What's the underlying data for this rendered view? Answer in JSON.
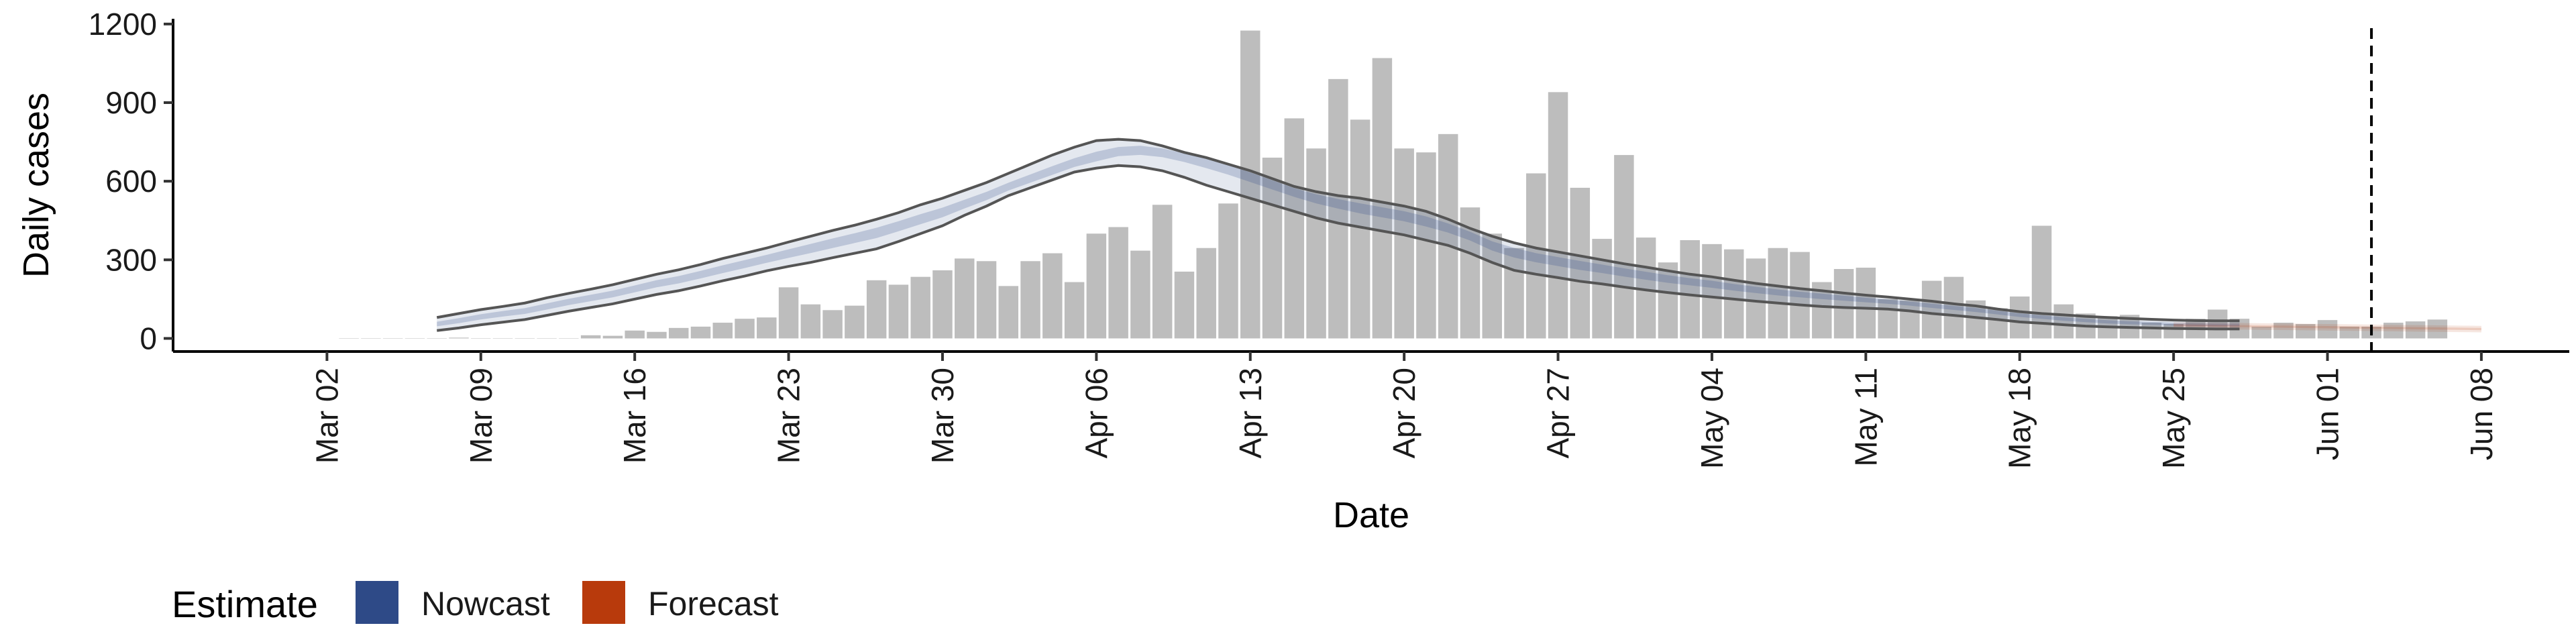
{
  "chart_data": {
    "type": "bar",
    "xlabel": "Date",
    "ylabel": "Daily cases",
    "ylim": [
      -50,
      1220
    ],
    "xlim": [
      "2020-02-24",
      "2020-06-12"
    ],
    "y_ticks": [
      0,
      300,
      600,
      900,
      1200
    ],
    "y_tick_labels": [
      "0",
      "300",
      "600",
      "900",
      "1200"
    ],
    "x_ticks": [
      "2020-03-02",
      "2020-03-09",
      "2020-03-16",
      "2020-03-23",
      "2020-03-30",
      "2020-04-06",
      "2020-04-13",
      "2020-04-20",
      "2020-04-27",
      "2020-05-04",
      "2020-05-11",
      "2020-05-18",
      "2020-05-25",
      "2020-06-01",
      "2020-06-08"
    ],
    "x_tick_labels": [
      "Mar 02",
      "Mar 09",
      "Mar 16",
      "Mar 23",
      "Mar 30",
      "Apr 06",
      "Apr 13",
      "Apr 20",
      "Apr 27",
      "May 04",
      "May 11",
      "May 18",
      "May 25",
      "Jun 01",
      "Jun 08"
    ],
    "grid": false,
    "vline_date": "2020-06-03",
    "legend": {
      "title": "Estimate",
      "position": "bottom-left",
      "items": [
        {
          "label": "Nowcast",
          "color": "#2e4a87"
        },
        {
          "label": "Forecast",
          "color": "#b83a0c"
        }
      ]
    },
    "bars": {
      "start_date": "2020-03-03",
      "color": "#bdbdbd",
      "values": [
        0,
        0,
        0,
        0,
        0,
        3,
        0,
        0,
        0,
        1,
        0,
        12,
        10,
        30,
        25,
        40,
        45,
        60,
        75,
        80,
        195,
        130,
        108,
        125,
        222,
        205,
        235,
        260,
        305,
        295,
        200,
        295,
        325,
        215,
        400,
        425,
        335,
        510,
        255,
        345,
        515,
        1175,
        690,
        840,
        725,
        990,
        835,
        1070,
        725,
        710,
        780,
        500,
        400,
        345,
        630,
        940,
        575,
        380,
        700,
        385,
        290,
        375,
        360,
        340,
        305,
        345,
        330,
        215,
        265,
        270,
        150,
        145,
        220,
        235,
        145,
        115,
        160,
        430,
        130,
        95,
        85,
        90,
        60,
        55,
        75,
        110,
        75,
        45,
        60,
        55,
        70,
        45,
        45,
        60,
        65,
        72
      ]
    },
    "nowcast": {
      "start_date": "2020-03-07",
      "color": "#2e4a87",
      "median": [
        55,
        68,
        83,
        95,
        105,
        122,
        140,
        155,
        170,
        190,
        210,
        225,
        245,
        265,
        285,
        305,
        325,
        345,
        365,
        385,
        405,
        430,
        455,
        480,
        510,
        540,
        575,
        605,
        635,
        665,
        690,
        715,
        725,
        720,
        705,
        685,
        660,
        630,
        600,
        570,
        545,
        525,
        505,
        490,
        475,
        455,
        430,
        400,
        360,
        335,
        315,
        300,
        285,
        272,
        258,
        245,
        232,
        222,
        212,
        200,
        190,
        180,
        172,
        165,
        158,
        150,
        143,
        136,
        128,
        120,
        112,
        102,
        92,
        84,
        76,
        70,
        64,
        60,
        58,
        55,
        53,
        52,
        52
      ],
      "lower": [
        30,
        40,
        52,
        62,
        72,
        88,
        104,
        118,
        132,
        150,
        168,
        182,
        200,
        220,
        238,
        258,
        275,
        290,
        308,
        325,
        342,
        370,
        400,
        430,
        470,
        505,
        545,
        575,
        605,
        635,
        650,
        660,
        655,
        640,
        615,
        585,
        560,
        535,
        510,
        485,
        460,
        440,
        425,
        410,
        395,
        375,
        355,
        325,
        290,
        260,
        245,
        232,
        218,
        208,
        196,
        185,
        175,
        166,
        158,
        150,
        142,
        135,
        128,
        122,
        118,
        115,
        112,
        105,
        95,
        88,
        80,
        72,
        63,
        58,
        52,
        47,
        44,
        42,
        40,
        38,
        37,
        36,
        36
      ],
      "upper": [
        80,
        95,
        110,
        122,
        135,
        155,
        172,
        188,
        205,
        225,
        245,
        262,
        282,
        305,
        325,
        345,
        368,
        390,
        412,
        432,
        455,
        480,
        510,
        535,
        565,
        595,
        630,
        665,
        700,
        730,
        755,
        760,
        755,
        735,
        710,
        690,
        665,
        640,
        610,
        580,
        560,
        545,
        535,
        520,
        505,
        485,
        455,
        420,
        390,
        365,
        345,
        330,
        315,
        300,
        285,
        272,
        258,
        245,
        235,
        222,
        210,
        200,
        190,
        182,
        173,
        165,
        158,
        150,
        142,
        132,
        124,
        112,
        102,
        95,
        90,
        84,
        80,
        76,
        73,
        70,
        68,
        67,
        67
      ]
    },
    "forecast": {
      "start_date": "2020-05-25",
      "color": "#b83a0c",
      "median": [
        50,
        49,
        48,
        47,
        46,
        45,
        44,
        43,
        42,
        41,
        40,
        39,
        38,
        37,
        36
      ],
      "lower": [
        38,
        37,
        35,
        34,
        33,
        32,
        31,
        30,
        29,
        28,
        27,
        26,
        25,
        24,
        23
      ],
      "upper": [
        62,
        61,
        60,
        59,
        58,
        57,
        56,
        55,
        54,
        53,
        52,
        51,
        50,
        49,
        48
      ]
    }
  }
}
